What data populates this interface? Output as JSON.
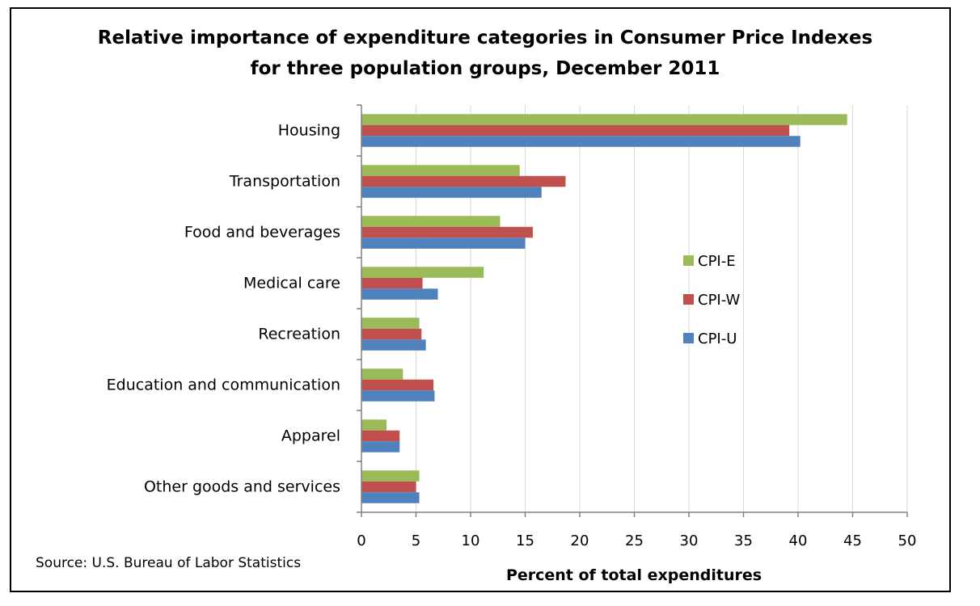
{
  "chart_data": {
    "type": "bar",
    "orientation": "horizontal",
    "title": "Relative importance of expenditure categories in Consumer Price Indexes",
    "subtitle": "for three population groups, December 2011",
    "xlabel": "Percent of total expenditures",
    "ylabel": "",
    "xlim": [
      0,
      50
    ],
    "xticks": [
      0,
      5,
      10,
      15,
      20,
      25,
      30,
      35,
      40,
      45,
      50
    ],
    "grid": "vertical",
    "legend_position": "right-middle",
    "categories": [
      "Housing",
      "Transportation",
      "Food and beverages",
      "Medical care",
      "Recreation",
      "Education and communication",
      "Apparel",
      "Other goods and services"
    ],
    "series": [
      {
        "name": "CPI-E",
        "color": "#9BBB59",
        "values": [
          44.5,
          14.5,
          12.7,
          11.2,
          5.3,
          3.8,
          2.3,
          5.3
        ]
      },
      {
        "name": "CPI-W",
        "color": "#C0504D",
        "values": [
          39.2,
          18.7,
          15.7,
          5.6,
          5.5,
          6.6,
          3.5,
          5.0
        ]
      },
      {
        "name": "CPI-U",
        "color": "#4F81BD",
        "values": [
          40.2,
          16.5,
          15.0,
          7.0,
          5.9,
          6.7,
          3.5,
          5.3
        ]
      }
    ],
    "source": "Source: U.S. Bureau of Labor Statistics"
  }
}
